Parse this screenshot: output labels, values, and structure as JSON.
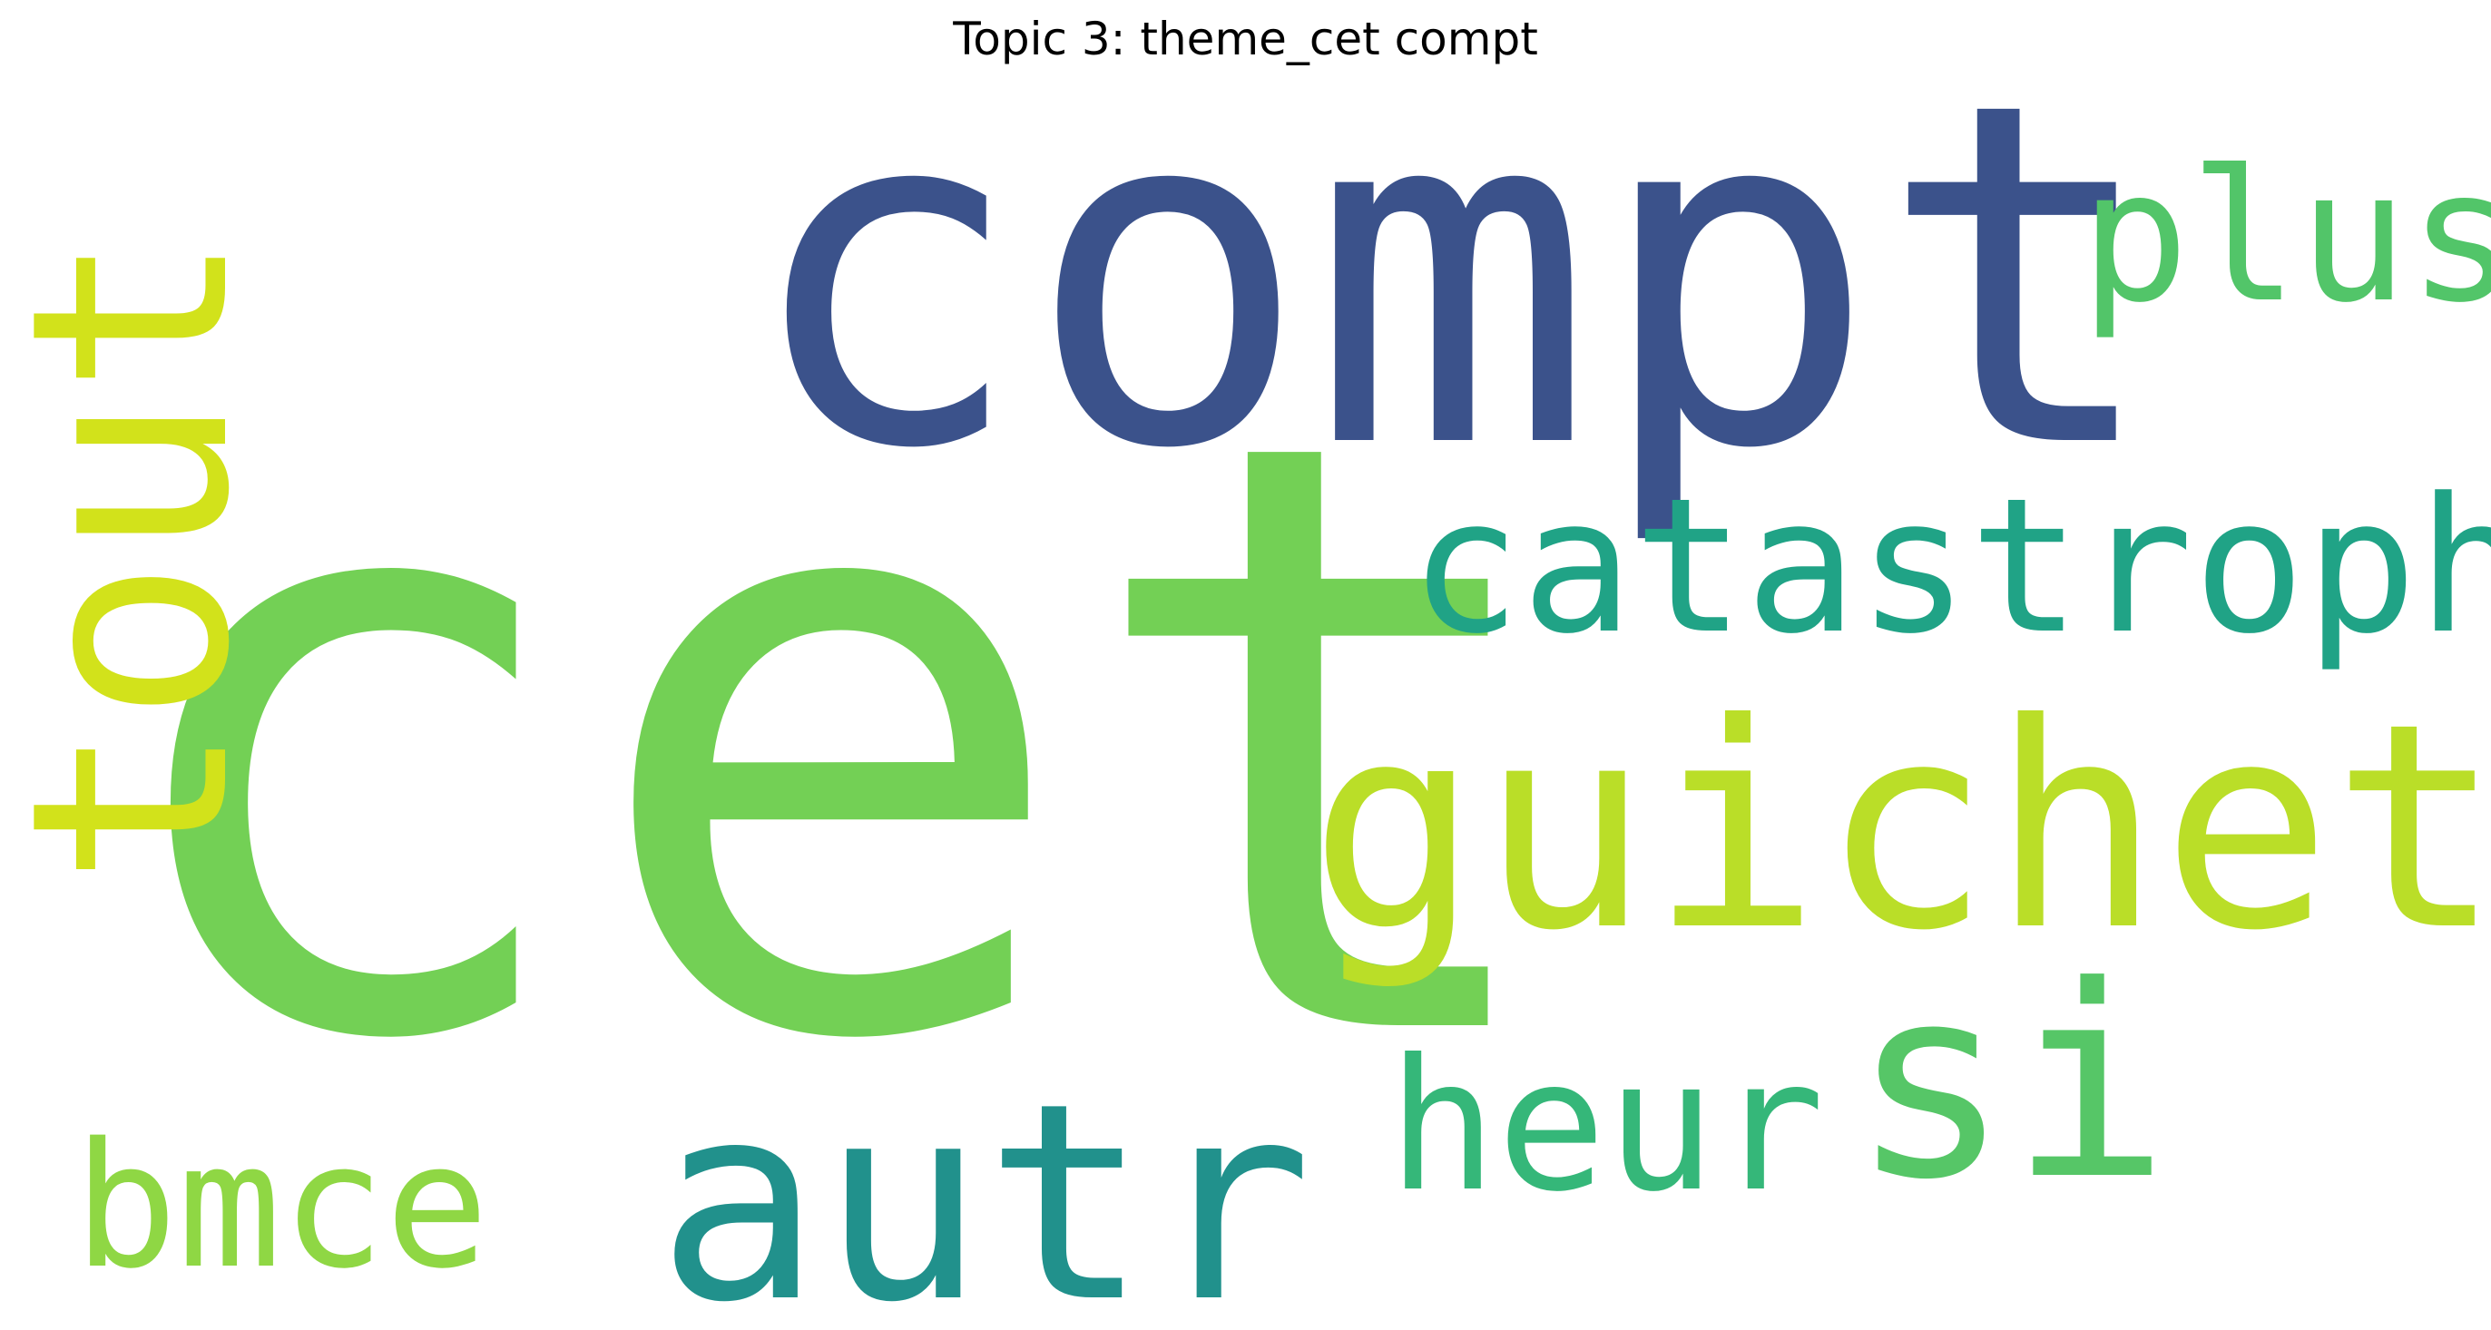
{
  "figure": {
    "title": "Topic 3: theme_cet compt",
    "background": "#ffffff"
  },
  "wordcloud": {
    "words": [
      {
        "text": "compt",
        "color": "#3b528b",
        "orientation": "horizontal"
      },
      {
        "text": "cet",
        "color": "#73d055",
        "orientation": "horizontal"
      },
      {
        "text": "tout",
        "color": "#d2e21b",
        "orientation": "vertical"
      },
      {
        "text": "plus",
        "color": "#52c569",
        "orientation": "horizontal"
      },
      {
        "text": "catastroph",
        "color": "#20a386",
        "orientation": "horizontal"
      },
      {
        "text": "guichet",
        "color": "#bade28",
        "orientation": "horizontal"
      },
      {
        "text": "si",
        "color": "#56c667",
        "orientation": "horizontal"
      },
      {
        "text": "heur",
        "color": "#35b779",
        "orientation": "horizontal"
      },
      {
        "text": "autr",
        "color": "#21918c",
        "orientation": "horizontal"
      },
      {
        "text": "bmce",
        "color": "#8fd744",
        "orientation": "horizontal"
      }
    ]
  }
}
